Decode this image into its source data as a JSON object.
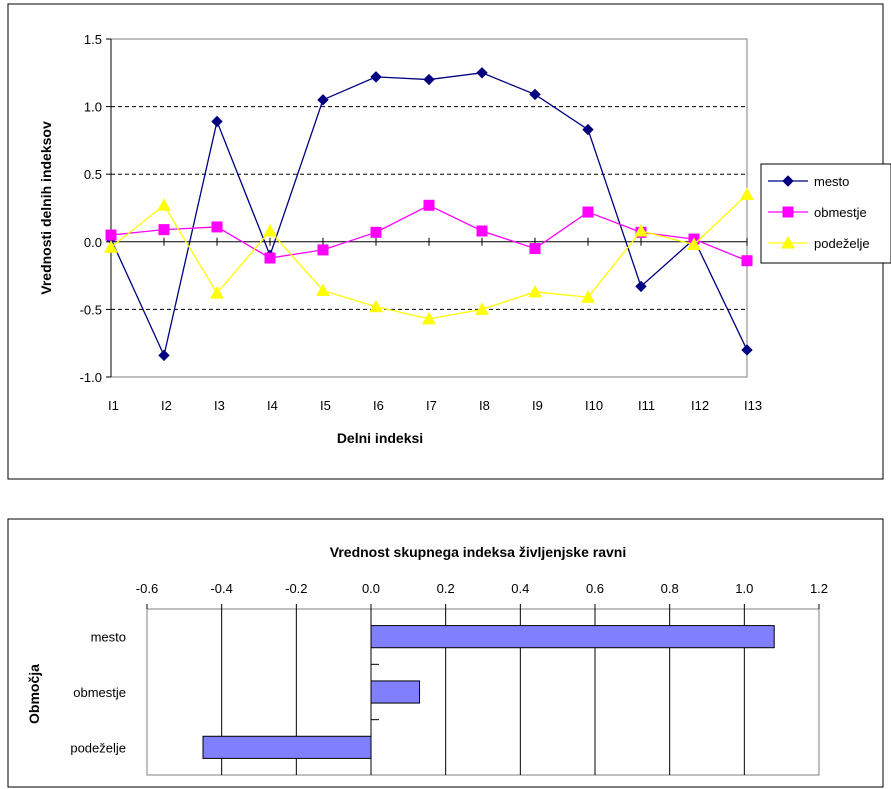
{
  "chart_data": [
    {
      "type": "line",
      "title": "",
      "xlabel": "Delni indeksi",
      "ylabel": "Vrednosti delnih indeksov",
      "categories": [
        "I1",
        "I2",
        "I3",
        "I4",
        "I5",
        "I6",
        "I7",
        "I8",
        "I9",
        "I10",
        "I11",
        "I12",
        "I13"
      ],
      "ylim": [
        -1.0,
        1.5
      ],
      "yticks": [
        "1.5",
        "1.0",
        "0.5",
        "0.0",
        "-0.5",
        "-1.0"
      ],
      "grid": "dashed-horizontal",
      "legend": "right",
      "series": [
        {
          "name": "mesto",
          "color": "#000080",
          "marker": "diamond",
          "values": [
            0.02,
            -0.84,
            0.89,
            -0.1,
            1.05,
            1.22,
            1.2,
            1.25,
            1.09,
            0.83,
            -0.33,
            0.02,
            -0.8
          ]
        },
        {
          "name": "obmestje",
          "color": "#ff00ff",
          "marker": "square",
          "values": [
            0.05,
            0.09,
            0.11,
            -0.12,
            -0.06,
            0.07,
            0.27,
            0.08,
            -0.05,
            0.22,
            0.07,
            0.02,
            -0.14
          ]
        },
        {
          "name": "podeželje",
          "color": "#ffff00",
          "marker": "triangle",
          "values": [
            -0.04,
            0.27,
            -0.38,
            0.08,
            -0.36,
            -0.48,
            -0.57,
            -0.5,
            -0.37,
            -0.41,
            0.08,
            -0.02,
            0.35
          ]
        }
      ]
    },
    {
      "type": "bar",
      "orientation": "horizontal",
      "title": "Vrednost skupnega indeksa življenjske ravni",
      "ylabel": "Območja",
      "categories": [
        "mesto",
        "obmestje",
        "podeželje"
      ],
      "values": [
        1.08,
        0.13,
        -0.45
      ],
      "xlim": [
        -0.6,
        1.2
      ],
      "xticks": [
        "-0.6",
        "-0.4",
        "-0.2",
        "0.0",
        "0.2",
        "0.4",
        "0.6",
        "0.8",
        "1.0",
        "1.2"
      ],
      "bar_color": "#8080ff",
      "grid": "vertical"
    }
  ]
}
